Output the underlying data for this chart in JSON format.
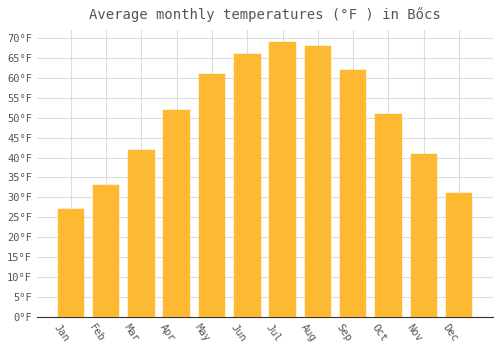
{
  "title": "Average monthly temperatures (°F ) in Bőcs",
  "months": [
    "Jan",
    "Feb",
    "Mar",
    "Apr",
    "May",
    "Jun",
    "Jul",
    "Aug",
    "Sep",
    "Oct",
    "Nov",
    "Dec"
  ],
  "values": [
    27,
    33,
    42,
    52,
    61,
    66,
    69,
    68,
    62,
    51,
    41,
    31
  ],
  "bar_color": "#FDB931",
  "bar_edge_color": "#FDB931",
  "background_color": "#FFFFFF",
  "grid_color": "#DDDDDD",
  "text_color": "#555555",
  "ylim": [
    0,
    72
  ],
  "yticks": [
    0,
    5,
    10,
    15,
    20,
    25,
    30,
    35,
    40,
    45,
    50,
    55,
    60,
    65,
    70
  ],
  "title_fontsize": 10,
  "tick_fontsize": 7.5,
  "font_family": "monospace",
  "xlabel_rotation": -55,
  "bar_width": 0.75
}
